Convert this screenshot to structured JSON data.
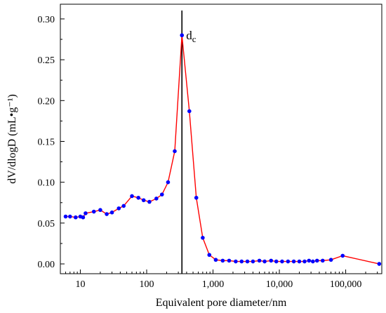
{
  "chart_data": {
    "type": "line",
    "xlabel": "Equivalent pore diameter/nm",
    "ylabel": "dV/dlogD  (mL•g⁻¹)",
    "x_scale": "log",
    "xlim": [
      5,
      350000
    ],
    "ylim": [
      -0.012,
      0.318
    ],
    "x_ticks": [
      {
        "value": 10,
        "label": "10"
      },
      {
        "value": 100,
        "label": "100"
      },
      {
        "value": 1000,
        "label": "1,000"
      },
      {
        "value": 10000,
        "label": "10,000"
      },
      {
        "value": 100000,
        "label": "100,000"
      }
    ],
    "y_ticks": [
      {
        "value": 0.0,
        "label": "0.00"
      },
      {
        "value": 0.05,
        "label": "0.05"
      },
      {
        "value": 0.1,
        "label": "0.10"
      },
      {
        "value": 0.15,
        "label": "0.15"
      },
      {
        "value": 0.2,
        "label": "0.20"
      },
      {
        "value": 0.25,
        "label": "0.25"
      },
      {
        "value": 0.3,
        "label": "0.30"
      }
    ],
    "grid": false,
    "line_color": "#ff0000",
    "marker_color": "#0000ff",
    "series": [
      {
        "x": [
          6,
          7,
          8.5,
          10,
          11,
          12,
          16,
          20,
          25,
          30,
          38,
          45,
          60,
          75,
          90,
          110,
          140,
          170,
          210,
          265,
          340,
          440,
          560,
          700,
          880,
          1100,
          1400,
          1750,
          2200,
          2700,
          3300,
          4000,
          5000,
          6000,
          7500,
          9000,
          11000,
          13500,
          16500,
          20000,
          24000,
          28000,
          32000,
          37000,
          45000,
          60000,
          90000,
          320000
        ],
        "y": [
          0.058,
          0.058,
          0.057,
          0.058,
          0.057,
          0.062,
          0.064,
          0.066,
          0.061,
          0.063,
          0.068,
          0.071,
          0.083,
          0.081,
          0.078,
          0.076,
          0.08,
          0.085,
          0.1,
          0.138,
          0.28,
          0.187,
          0.081,
          0.032,
          0.011,
          0.005,
          0.004,
          0.004,
          0.003,
          0.003,
          0.003,
          0.003,
          0.004,
          0.003,
          0.004,
          0.003,
          0.003,
          0.003,
          0.003,
          0.003,
          0.003,
          0.004,
          0.003,
          0.004,
          0.004,
          0.005,
          0.01,
          0.0
        ]
      }
    ],
    "annotation": {
      "text": "d",
      "subscript": "c",
      "x": 340
    }
  }
}
